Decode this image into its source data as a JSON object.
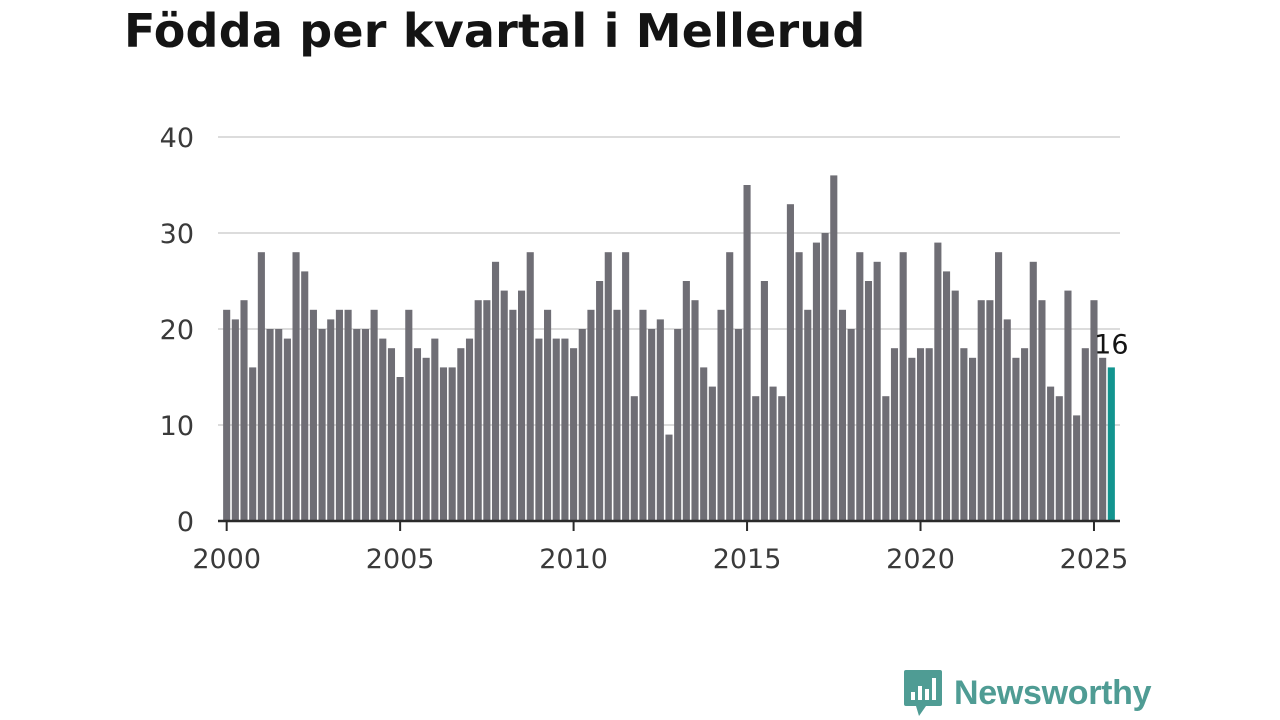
{
  "title": "Födda per kvartal i Mellerud",
  "brand": {
    "name": "Newsworthy",
    "color": "#4f9c94",
    "icon": "newsworthy-chart-bubble-icon"
  },
  "colors": {
    "bar": "#6f6e75",
    "highlight": "#12948f",
    "grid": "#dcdcdc",
    "axis": "#2a2a2a"
  },
  "chart_data": {
    "type": "bar",
    "title": "Födda per kvartal i Mellerud",
    "xlabel": "",
    "ylabel": "",
    "ylim": [
      0,
      40
    ],
    "yticks": [
      0,
      10,
      20,
      30,
      40
    ],
    "xlim": [
      1999.75,
      2025.75
    ],
    "xticks": [
      2000,
      2005,
      2010,
      2015,
      2020,
      2025
    ],
    "grid": true,
    "start_period": "2000 Q1",
    "categories": [
      "2000 Q1",
      "2000 Q2",
      "2000 Q3",
      "2000 Q4",
      "2001 Q1",
      "2001 Q2",
      "2001 Q3",
      "2001 Q4",
      "2002 Q1",
      "2002 Q2",
      "2002 Q3",
      "2002 Q4",
      "2003 Q1",
      "2003 Q2",
      "2003 Q3",
      "2003 Q4",
      "2004 Q1",
      "2004 Q2",
      "2004 Q3",
      "2004 Q4",
      "2005 Q1",
      "2005 Q2",
      "2005 Q3",
      "2005 Q4",
      "2006 Q1",
      "2006 Q2",
      "2006 Q3",
      "2006 Q4",
      "2007 Q1",
      "2007 Q2",
      "2007 Q3",
      "2007 Q4",
      "2008 Q1",
      "2008 Q2",
      "2008 Q3",
      "2008 Q4",
      "2009 Q1",
      "2009 Q2",
      "2009 Q3",
      "2009 Q4",
      "2010 Q1",
      "2010 Q2",
      "2010 Q3",
      "2010 Q4",
      "2011 Q1",
      "2011 Q2",
      "2011 Q3",
      "2011 Q4",
      "2012 Q1",
      "2012 Q2",
      "2012 Q3",
      "2012 Q4",
      "2013 Q1",
      "2013 Q2",
      "2013 Q3",
      "2013 Q4",
      "2014 Q1",
      "2014 Q2",
      "2014 Q3",
      "2014 Q4",
      "2015 Q1",
      "2015 Q2",
      "2015 Q3",
      "2015 Q4",
      "2016 Q1",
      "2016 Q2",
      "2016 Q3",
      "2016 Q4",
      "2017 Q1",
      "2017 Q2",
      "2017 Q3",
      "2017 Q4",
      "2018 Q1",
      "2018 Q2",
      "2018 Q3",
      "2018 Q4",
      "2019 Q1",
      "2019 Q2",
      "2019 Q3",
      "2019 Q4",
      "2020 Q1",
      "2020 Q2",
      "2020 Q3",
      "2020 Q4",
      "2021 Q1",
      "2021 Q2",
      "2021 Q3",
      "2021 Q4",
      "2022 Q1",
      "2022 Q2",
      "2022 Q3",
      "2022 Q4",
      "2023 Q1",
      "2023 Q2",
      "2023 Q3",
      "2023 Q4",
      "2024 Q1",
      "2024 Q2",
      "2024 Q3",
      "2024 Q4",
      "2025 Q1",
      "2025 Q2",
      "2025 Q3"
    ],
    "values": [
      22,
      21,
      23,
      16,
      28,
      20,
      20,
      19,
      28,
      26,
      22,
      20,
      21,
      22,
      22,
      20,
      20,
      22,
      19,
      18,
      15,
      22,
      18,
      17,
      19,
      16,
      16,
      18,
      19,
      23,
      23,
      27,
      24,
      22,
      24,
      28,
      19,
      22,
      19,
      19,
      18,
      20,
      22,
      25,
      28,
      22,
      28,
      13,
      22,
      20,
      21,
      9,
      20,
      25,
      23,
      16,
      14,
      22,
      28,
      20,
      35,
      13,
      25,
      14,
      13,
      33,
      28,
      22,
      29,
      30,
      36,
      22,
      20,
      28,
      25,
      27,
      13,
      18,
      28,
      17,
      18,
      18,
      29,
      26,
      24,
      18,
      17,
      23,
      23,
      28,
      21,
      17,
      18,
      27,
      23,
      14,
      13,
      24,
      11,
      18,
      23,
      17,
      16
    ],
    "highlight": {
      "category": "2025 Q3",
      "value": 16,
      "label": "16"
    }
  }
}
